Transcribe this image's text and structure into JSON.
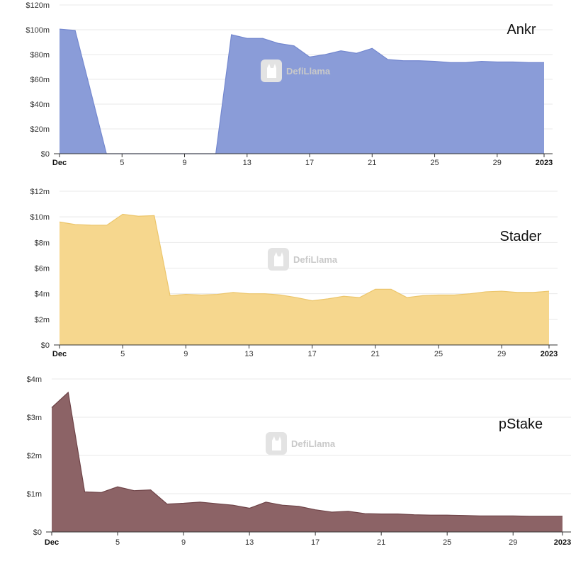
{
  "watermark": "DefiLlama",
  "chart_data": [
    {
      "type": "area",
      "title": "Ankr",
      "color": "#8a9cd8",
      "edge_color": "#7488cf",
      "x_ticks": [
        "Dec",
        "5",
        "9",
        "13",
        "17",
        "21",
        "25",
        "29",
        "2023"
      ],
      "y_ticks": [
        "$0",
        "$20m",
        "$40m",
        "$60m",
        "$80m",
        "$100m",
        "$120m"
      ],
      "ylim": [
        0,
        120
      ],
      "y_unit": "$m",
      "x": [
        1,
        2,
        3,
        4,
        5,
        6,
        7,
        8,
        9,
        10,
        11,
        12,
        13,
        14,
        15,
        16,
        17,
        18,
        19,
        20,
        21,
        22,
        23,
        24,
        25,
        26,
        27,
        28,
        29,
        30,
        31,
        32
      ],
      "values": [
        100.5,
        99.5,
        50,
        0,
        0,
        0,
        0,
        0,
        0,
        0,
        0,
        96,
        93,
        93,
        89,
        87,
        78,
        80,
        83,
        81,
        85,
        76,
        75,
        75,
        74.5,
        73.5,
        73.5,
        74.5,
        74,
        74,
        73.5,
        73.5
      ]
    },
    {
      "type": "area",
      "title": "Stader",
      "color": "#f6d78e",
      "edge_color": "#ecc66c",
      "x_ticks": [
        "Dec",
        "5",
        "9",
        "13",
        "17",
        "21",
        "25",
        "29",
        "2023"
      ],
      "y_ticks": [
        "$0",
        "$2m",
        "$4m",
        "$6m",
        "$8m",
        "$10m",
        "$12m"
      ],
      "ylim": [
        0,
        12
      ],
      "y_unit": "$m",
      "x": [
        1,
        2,
        3,
        4,
        5,
        6,
        7,
        8,
        9,
        10,
        11,
        12,
        13,
        14,
        15,
        16,
        17,
        18,
        19,
        20,
        21,
        22,
        23,
        24,
        25,
        26,
        27,
        28,
        29,
        30,
        31,
        32
      ],
      "values": [
        9.6,
        9.4,
        9.35,
        9.35,
        10.2,
        10.05,
        10.1,
        3.85,
        3.95,
        3.9,
        3.95,
        4.1,
        4.0,
        4.0,
        3.9,
        3.7,
        3.45,
        3.6,
        3.8,
        3.7,
        4.35,
        4.35,
        3.7,
        3.85,
        3.9,
        3.9,
        4.0,
        4.15,
        4.2,
        4.1,
        4.1,
        4.2
      ]
    },
    {
      "type": "area",
      "title": "pStake",
      "color": "#8c6366",
      "edge_color": "#6e4347",
      "x_ticks": [
        "Dec",
        "5",
        "9",
        "13",
        "17",
        "21",
        "25",
        "29",
        "2023"
      ],
      "y_ticks": [
        "$0",
        "$1m",
        "$2m",
        "$3m",
        "$4m"
      ],
      "ylim": [
        0,
        4
      ],
      "y_unit": "$m",
      "x": [
        1,
        2,
        3,
        4,
        5,
        6,
        7,
        8,
        9,
        10,
        11,
        12,
        13,
        14,
        15,
        16,
        17,
        18,
        19,
        20,
        21,
        22,
        23,
        24,
        25,
        26,
        27,
        28,
        29,
        30,
        31,
        32
      ],
      "values": [
        3.25,
        3.65,
        1.05,
        1.03,
        1.18,
        1.08,
        1.1,
        0.73,
        0.75,
        0.78,
        0.74,
        0.7,
        0.62,
        0.78,
        0.7,
        0.67,
        0.58,
        0.52,
        0.54,
        0.48,
        0.47,
        0.47,
        0.45,
        0.44,
        0.44,
        0.43,
        0.42,
        0.42,
        0.42,
        0.41,
        0.41,
        0.41
      ]
    }
  ]
}
